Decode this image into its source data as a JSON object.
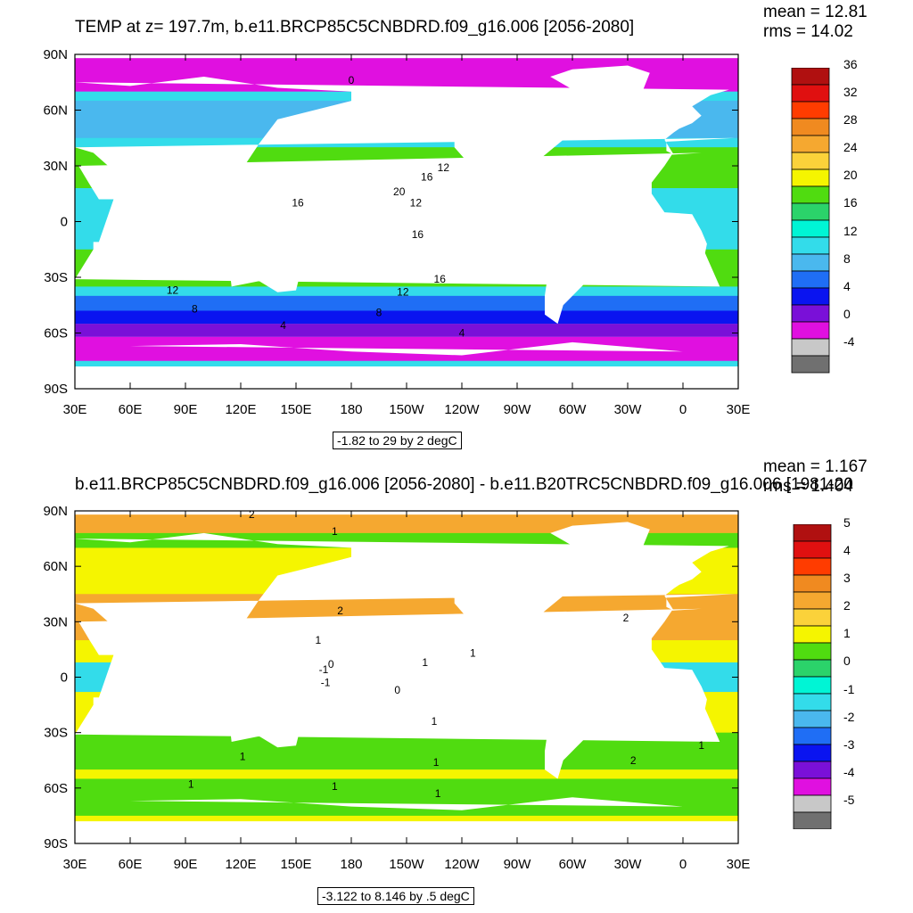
{
  "panels": [
    {
      "title": "TEMP at z= 197.7m, b.e11.BRCP85C5CNBDRD.f09_g16.006 [2056-2080]",
      "mean": "mean = 12.81",
      "rms": "rms = 14.02",
      "contour_info": "-1.82 to 29 by 2 degC",
      "colorbar_labels": [
        "36",
        "32",
        "28",
        "24",
        "20",
        "16",
        "12",
        "8",
        "4",
        "0",
        "-4"
      ],
      "colorbar_colors": [
        "#b01010",
        "#e01010",
        "#ff3c00",
        "#f08a20",
        "#f5a830",
        "#fbd23a",
        "#f5f500",
        "#50dc10",
        "#2bd36a",
        "#00f5d5",
        "#33dcea",
        "#4ab8ee",
        "#1f6ef5",
        "#0a14f0",
        "#7a10d8",
        "#e010e0",
        "#c8c8c8",
        "#707070"
      ],
      "contour_labels": [
        {
          "text": "0",
          "lon": 180,
          "lat": 76
        },
        {
          "text": "12",
          "lon": -130,
          "lat": 29
        },
        {
          "text": "16",
          "lon": -139,
          "lat": 24
        },
        {
          "text": "20",
          "lon": -154,
          "lat": 16
        },
        {
          "text": "16",
          "lon": 151,
          "lat": 10
        },
        {
          "text": "12",
          "lon": -145,
          "lat": 10
        },
        {
          "text": "16",
          "lon": -144,
          "lat": -7
        },
        {
          "text": "16",
          "lon": -132,
          "lat": -31
        },
        {
          "text": "12",
          "lon": 83,
          "lat": -37
        },
        {
          "text": "12",
          "lon": -152,
          "lat": -38
        },
        {
          "text": "8",
          "lon": 95,
          "lat": -47
        },
        {
          "text": "8",
          "lon": -165,
          "lat": -49
        },
        {
          "text": "4",
          "lon": 143,
          "lat": -56
        },
        {
          "text": "4",
          "lon": -120,
          "lat": -60
        }
      ]
    },
    {
      "title": "b.e11.BRCP85C5CNBDRD.f09_g16.006 [2056-2080] - b.e11.B20TRC5CNBDRD.f09_g16.006 [1981-20",
      "mean": "mean = 1.167",
      "rms": "rms = 1.404",
      "contour_info": "-3.122 to 8.146 by .5 degC",
      "colorbar_labels": [
        "5",
        "4",
        "3",
        "2",
        "1",
        "0",
        "-1",
        "-2",
        "-3",
        "-4",
        "-5"
      ],
      "colorbar_colors": [
        "#b01010",
        "#e01010",
        "#ff3c00",
        "#f08a20",
        "#f5a830",
        "#fbd23a",
        "#f5f500",
        "#50dc10",
        "#2bd36a",
        "#00f5d5",
        "#33dcea",
        "#4ab8ee",
        "#1f6ef5",
        "#0a14f0",
        "#7a10d8",
        "#e010e0",
        "#c8c8c8",
        "#707070"
      ],
      "contour_labels": [
        {
          "text": "2",
          "lon": 126,
          "lat": 88
        },
        {
          "text": "1",
          "lon": 171,
          "lat": 79
        },
        {
          "text": "2",
          "lon": 174,
          "lat": 36
        },
        {
          "text": "1",
          "lon": 162,
          "lat": 20
        },
        {
          "text": "1",
          "lon": -140,
          "lat": 8
        },
        {
          "text": "1",
          "lon": -114,
          "lat": 13
        },
        {
          "text": "0",
          "lon": 169,
          "lat": 7
        },
        {
          "text": "-1",
          "lon": 165,
          "lat": 4
        },
        {
          "text": "-1",
          "lon": 166,
          "lat": -3
        },
        {
          "text": "0",
          "lon": -155,
          "lat": -7
        },
        {
          "text": "1",
          "lon": -135,
          "lat": -24
        },
        {
          "text": "2",
          "lon": -31,
          "lat": 32
        },
        {
          "text": "1",
          "lon": 10,
          "lat": -37
        },
        {
          "text": "2",
          "lon": -27,
          "lat": -45
        },
        {
          "text": "1",
          "lon": 121,
          "lat": -43
        },
        {
          "text": "1",
          "lon": -134,
          "lat": -46
        },
        {
          "text": "1",
          "lon": 93,
          "lat": -58
        },
        {
          "text": "1",
          "lon": 171,
          "lat": -59
        },
        {
          "text": "1",
          "lon": -133,
          "lat": -63
        }
      ]
    }
  ],
  "axes": {
    "lat_labels": [
      "90N",
      "60N",
      "30N",
      "0",
      "30S",
      "60S",
      "90S"
    ],
    "lon_labels": [
      "30E",
      "60E",
      "90E",
      "120E",
      "150E",
      "180",
      "150W",
      "120W",
      "90W",
      "60W",
      "30W",
      "0",
      "30E"
    ]
  },
  "colors": {
    "ocean_top_default": "#33dcea",
    "ocean_bottom_default": "#f5f500",
    "land": "#ffffff"
  }
}
